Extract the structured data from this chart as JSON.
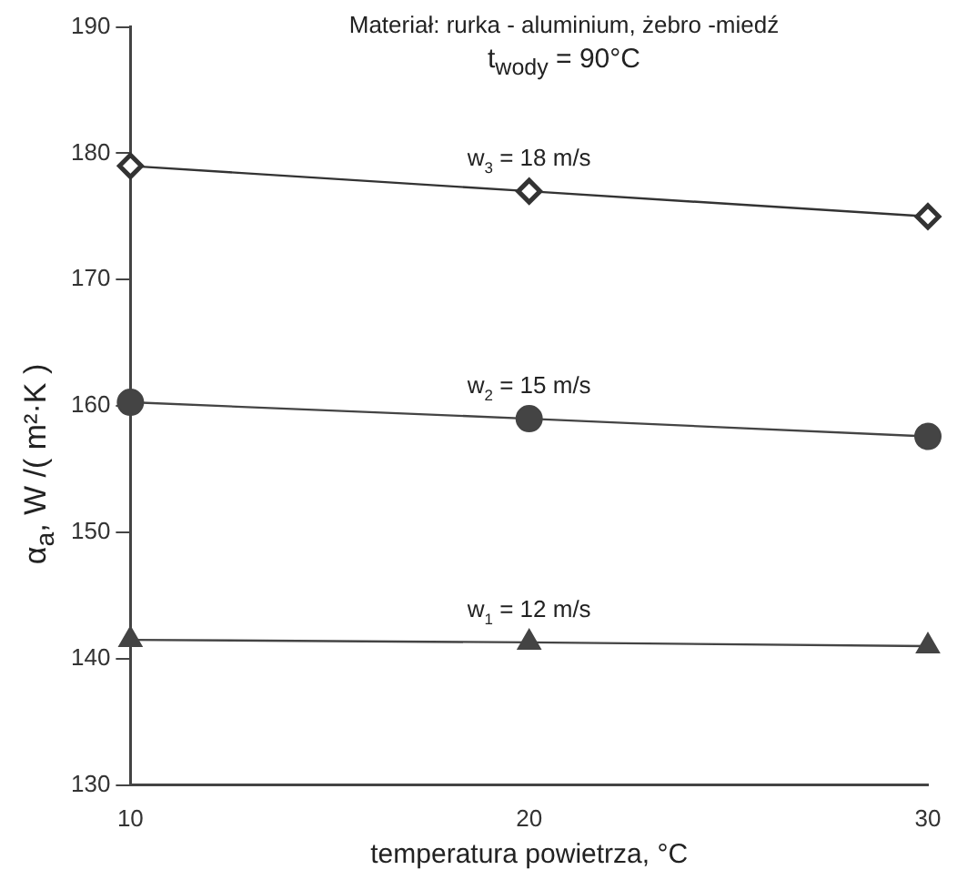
{
  "chart_data": {
    "type": "line",
    "title": "Materiał: rurka - aluminium, żebro -miedź",
    "subtitle": "t$_{wody}$ = 90°C",
    "xlabel": "temperatura powietrza, °C",
    "ylabel": "α$_{a}$, W /( m²·K )",
    "x": [
      10,
      20,
      30
    ],
    "xlim": [
      10,
      30
    ],
    "xticks": [
      10,
      20,
      30
    ],
    "ylim": [
      130,
      190
    ],
    "yticks": [
      130,
      140,
      150,
      160,
      170,
      180,
      190
    ],
    "grid": false,
    "legend": false,
    "series": [
      {
        "name": "w$_{3}$ = 18 m/s",
        "color": "#333333",
        "marker": "diamond",
        "values": [
          179,
          177,
          175
        ]
      },
      {
        "name": "w$_{2}$ = 15 m/s",
        "color": "#444444",
        "marker": "circle",
        "values": [
          160.3,
          159,
          157.6
        ]
      },
      {
        "name": "w$_{1}$ = 12 m/s",
        "color": "#444444",
        "marker": "triangle",
        "values": [
          141.5,
          141.3,
          141
        ]
      }
    ]
  }
}
